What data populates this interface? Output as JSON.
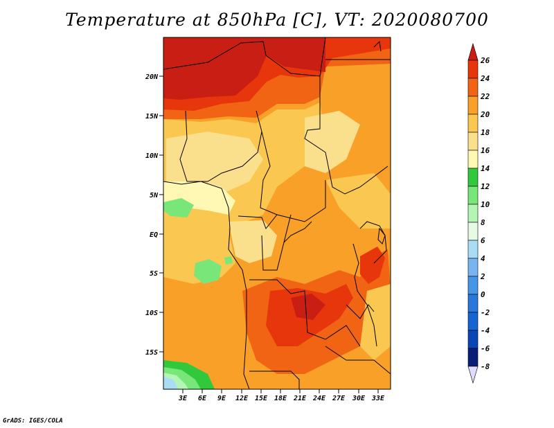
{
  "title": "Temperature at 850hPa [C], VT: 2020080700",
  "credit": "GrADS: IGES/COLA",
  "map": {
    "lat_labels": [
      "20N",
      "15N",
      "10N",
      "5N",
      "EQ",
      "5S",
      "10S",
      "15S"
    ],
    "lon_labels": [
      "3E",
      "6E",
      "9E",
      "12E",
      "15E",
      "18E",
      "21E",
      "24E",
      "27E",
      "30E",
      "33E"
    ]
  },
  "colorbar": {
    "labels": [
      "26",
      "24",
      "22",
      "20",
      "18",
      "16",
      "14",
      "12",
      "10",
      "8",
      "6",
      "4",
      "2",
      "0",
      "-2",
      "-4",
      "-6",
      "-8"
    ],
    "colors": {
      "c26": "#c81e14",
      "c24": "#e8360c",
      "c22": "#f06414",
      "c20": "#f8a028",
      "c18": "#fac850",
      "c16": "#fae08c",
      "c14": "#fff7b4",
      "c12": "#32c83c",
      "c10": "#78e678",
      "c8": "#b4f5b4",
      "c6": "#e6fae6",
      "c4": "#aadcf5",
      "c2": "#78b4f0",
      "c0": "#4696e6",
      "cm2": "#2878dc",
      "cm4": "#1464d2",
      "cm6": "#0a46b4",
      "cm8": "#0a1e78",
      "cm10": "#e1dcff"
    }
  }
}
